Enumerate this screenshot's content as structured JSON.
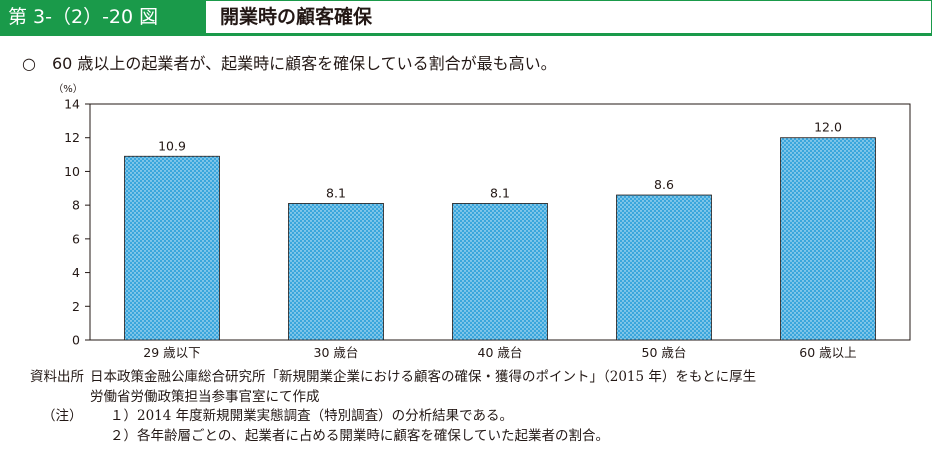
{
  "header": {
    "figure_number": "第 3-（2）-20 図",
    "title": "開業時の顧客確保"
  },
  "summary": {
    "bullet": "○",
    "text": "60 歳以上の起業者が、起業時に顧客を確保している割合が最も高い。"
  },
  "colors": {
    "accent": "#1a9a4a",
    "bar_fill": "#3aa6dc",
    "bar_dot": "#ffffff"
  },
  "chart_data": {
    "type": "bar",
    "unit_label": "（%）",
    "categories": [
      "29 歳以下",
      "30 歳台",
      "40 歳台",
      "50 歳台",
      "60 歳以上"
    ],
    "values": [
      10.9,
      8.1,
      8.1,
      8.6,
      12.0
    ],
    "data_labels": [
      "10.9",
      "8.1",
      "8.1",
      "8.6",
      "12.0"
    ],
    "ylim": [
      0,
      14
    ],
    "yticks": [
      "0",
      "2",
      "4",
      "6",
      "8",
      "10",
      "12",
      "14"
    ],
    "grid": false
  },
  "notes": {
    "source_label": "資料出所",
    "source_line1": "日本政策金融公庫総合研究所「新規開業企業における顧客の確保・獲得のポイント」（2015 年）をもとに厚生",
    "source_line2": "労働省労働政策担当参事官室にて作成",
    "note_label": "（注）",
    "note1": "１）2014 年度新規開業実態調査（特別調査）の分析結果である。",
    "note2": "２）各年齢層ごとの、起業者に占める開業時に顧客を確保していた起業者の割合。"
  }
}
